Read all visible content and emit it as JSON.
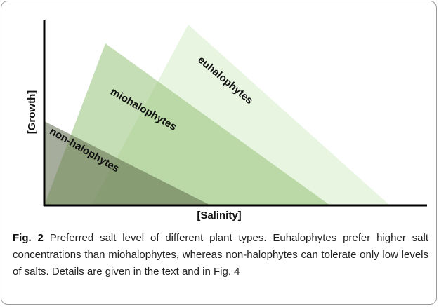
{
  "figure": {
    "y_axis_label": "[Growth]",
    "x_axis_label": "[Salinity]",
    "regions": [
      {
        "label": "euhalophytes"
      },
      {
        "label": "miohalophytes"
      },
      {
        "label": "non-halophytes"
      }
    ],
    "caption": {
      "label": "Fig. 2",
      "text": "Preferred salt level of different plant types. Euhalophytes prefer higher salt concentrations than miohalophytes, whereas non-halophytes can tolerate only low levels of salts. Details are given in the text and in Fig. 4"
    }
  }
}
